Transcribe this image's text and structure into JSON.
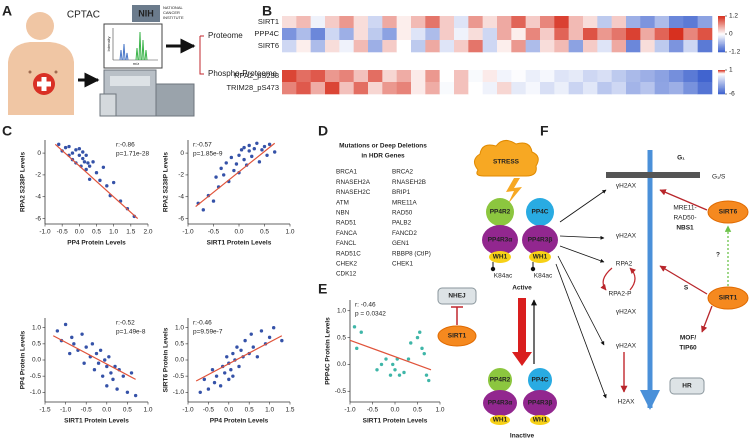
{
  "panel_labels": [
    "A",
    "B",
    "C",
    "D",
    "E",
    "F"
  ],
  "panel_a": {
    "source": "CPTAC",
    "agency": "NIH",
    "agency_full": [
      "NATIONAL",
      "CANCER",
      "INSTITUTE"
    ],
    "y_axis": "Intensity",
    "x_axis": "m/z",
    "outputs": [
      "Proteome",
      "Phospho-Proteome"
    ]
  },
  "chart_data": [
    {
      "type": "heatmap",
      "rows": [
        "SIRT1",
        "PPP4C",
        "SIRT6"
      ],
      "colors": [
        "#3a5fcd",
        "#ffffff",
        "#d7301f"
      ],
      "clim": [
        -1.2,
        1.2
      ],
      "colorbar_ticks": [
        1.2,
        0,
        -1.2
      ],
      "values": [
        [
          0.2,
          0.4,
          -0.1,
          0.3,
          0.6,
          0.2,
          -0.3,
          0.5,
          0.1,
          0.4,
          0.8,
          0.3,
          -0.2,
          0.6,
          0.2,
          0.5,
          0.9,
          0.3,
          0.7,
          1.1,
          0.4,
          0.2,
          -0.4,
          0.3,
          -0.6,
          -0.8,
          -0.5,
          -0.9,
          -1.0,
          -0.7
        ],
        [
          -0.8,
          -0.5,
          -0.9,
          -0.3,
          -0.6,
          0.2,
          -0.4,
          -0.7,
          0.1,
          -0.2,
          -0.5,
          0.3,
          -0.1,
          0.2,
          -0.3,
          0.5,
          0.1,
          0.7,
          0.3,
          0.9,
          0.4,
          1.0,
          0.6,
          0.8,
          1.1,
          0.5,
          0.9,
          1.2,
          0.7,
          1.0
        ],
        [
          -0.3,
          0.1,
          -0.5,
          0.2,
          -0.1,
          0.4,
          -0.6,
          0.3,
          0.0,
          -0.4,
          0.5,
          -0.2,
          0.3,
          0.8,
          -0.3,
          0.1,
          0.6,
          -0.5,
          0.2,
          0.4,
          -0.7,
          0.3,
          -0.2,
          0.5,
          -0.9,
          0.2,
          -0.4,
          -0.8,
          -0.3,
          -1.0
        ]
      ]
    },
    {
      "type": "heatmap",
      "rows": [
        "RPA2_pS238",
        "TRIM28_pS473"
      ],
      "colors": [
        "#3a5fcd",
        "#ffffff",
        "#d7301f"
      ],
      "clim": [
        -6,
        1
      ],
      "colorbar_ticks": [
        1,
        -6
      ],
      "values": [
        [
          0.9,
          0.7,
          0.8,
          0.5,
          0.6,
          0.3,
          0.7,
          0.2,
          0.4,
          0.1,
          0.5,
          0.0,
          0.3,
          -0.2,
          0.1,
          -0.4,
          -0.1,
          -0.6,
          -0.3,
          -1.0,
          -0.8,
          -1.5,
          -1.2,
          -2.0,
          -2.6,
          -3.0,
          -3.5,
          -4.2,
          -5.0,
          -5.8
        ],
        [
          0.6,
          0.8,
          0.4,
          0.9,
          0.3,
          0.7,
          0.2,
          0.5,
          0.6,
          0.1,
          0.4,
          -0.2,
          0.3,
          0.0,
          -0.5,
          0.2,
          -0.8,
          -0.3,
          -1.2,
          -0.6,
          -1.6,
          -0.9,
          -2.1,
          -1.5,
          -2.8,
          -2.2,
          -3.4,
          -3.0,
          -4.1,
          -5.2
        ]
      ]
    },
    {
      "type": "scatter",
      "color": "#3552a8",
      "x_label": "PP4 Protein Levels",
      "y_label": "RPA2 S238P Levels",
      "annotations": [
        "r:-0.86",
        "p=1.71e-28"
      ],
      "xlim": [
        -1,
        2
      ],
      "ylim": [
        -6.5,
        1.2
      ],
      "xticks": [
        {
          "value": -1,
          "label": "-1.0"
        },
        -0.5,
        {
          "value": 0,
          "label": "0.0"
        },
        0.5,
        {
          "value": 1,
          "label": "1.0"
        },
        1.5,
        {
          "value": 2,
          "label": "2.0"
        }
      ],
      "yticks": [
        0,
        -2,
        -4,
        -6
      ],
      "x": [
        -0.6,
        -0.5,
        -0.4,
        -0.3,
        -0.3,
        -0.2,
        -0.2,
        -0.1,
        -0.1,
        0,
        0,
        0.05,
        0.1,
        0.1,
        0.15,
        0.2,
        0.2,
        0.25,
        0.3,
        0.3,
        0.4,
        0.5,
        0.6,
        0.7,
        0.8,
        0.9,
        1.0,
        1.2,
        1.4,
        1.6
      ],
      "y": [
        0.8,
        0.2,
        0.5,
        -0.2,
        0.6,
        0.0,
        -0.6,
        0.3,
        -0.9,
        -0.2,
        0.4,
        -1.2,
        -0.5,
        0.1,
        -0.8,
        -1.5,
        -0.2,
        -0.9,
        -1.2,
        -2.4,
        -0.8,
        -1.8,
        -2.5,
        -1.3,
        -3.0,
        -3.9,
        -2.7,
        -4.4,
        -5.1,
        -5.8
      ],
      "fit": {
        "color": "#e0533a",
        "x": [
          -0.7,
          1.7
        ],
        "y": [
          0.8,
          -6.0
        ]
      }
    },
    {
      "type": "scatter",
      "color": "#3552a8",
      "x_label": "SIRT1 Protein Levels",
      "y_label": "RPA2 S238P Levels",
      "annotations": [
        "r:-0.57",
        "p=1.85e-9"
      ],
      "xlim": [
        -1,
        1
      ],
      "ylim": [
        -6.5,
        1.2
      ],
      "xticks": [
        {
          "value": -1,
          "label": "-1.0"
        },
        -0.5,
        {
          "value": 0,
          "label": "0.0"
        },
        0.5,
        {
          "value": 1,
          "label": "1.0"
        }
      ],
      "yticks": [
        0,
        -2,
        -4,
        -6
      ],
      "x": [
        -0.8,
        -0.7,
        -0.6,
        -0.5,
        -0.45,
        -0.4,
        -0.35,
        -0.3,
        -0.25,
        -0.2,
        -0.15,
        -0.1,
        -0.05,
        0,
        0,
        0.05,
        0.1,
        0.1,
        0.15,
        0.2,
        0.2,
        0.25,
        0.3,
        0.35,
        0.4,
        0.45,
        0.5,
        0.55,
        0.6,
        0.7
      ],
      "y": [
        -4.6,
        -5.2,
        -3.9,
        -4.4,
        -2.2,
        -3.1,
        -1.4,
        -2.0,
        -0.9,
        -2.6,
        -0.4,
        -1.6,
        -1.0,
        -0.2,
        -1.8,
        0.3,
        -0.6,
        0.5,
        -1.1,
        0.2,
        0.7,
        -0.3,
        0.4,
        0.9,
        -0.8,
        0.3,
        0.6,
        -0.2,
        0.8,
        0.1
      ],
      "fit": {
        "color": "#e0533a",
        "x": [
          -0.85,
          0.7
        ],
        "y": [
          -4.9,
          0.9
        ]
      }
    },
    {
      "type": "scatter",
      "color": "#3552a8",
      "x_label": "SIRT1 Protein Levels",
      "y_label": "PP4 Protein Levels",
      "annotations": [
        "r:-0.52",
        "p=1.49e-8"
      ],
      "xlim": [
        -1.5,
        1
      ],
      "ylim": [
        -1.3,
        1.3
      ],
      "xticks": [
        -1.5,
        {
          "value": -1,
          "label": "-1.0"
        },
        -0.5,
        {
          "value": 0,
          "label": "0.0"
        },
        0.5,
        {
          "value": 1,
          "label": "1.0"
        }
      ],
      "yticks": [
        {
          "value": 1,
          "label": "1.0"
        },
        0.5,
        {
          "value": 0,
          "label": "0.0"
        },
        -0.5,
        {
          "value": -1,
          "label": "-1.0"
        }
      ],
      "x": [
        -1.2,
        -1.1,
        -1.0,
        -0.9,
        -0.85,
        -0.8,
        -0.7,
        -0.6,
        -0.55,
        -0.5,
        -0.4,
        -0.35,
        -0.3,
        -0.25,
        -0.2,
        -0.15,
        -0.1,
        -0.05,
        0,
        0,
        0.05,
        0.1,
        0.15,
        0.2,
        0.25,
        0.3,
        0.4,
        0.5,
        0.6,
        0.7
      ],
      "y": [
        0.9,
        0.6,
        1.1,
        0.2,
        0.7,
        0.5,
        0.3,
        0.8,
        -0.1,
        0.4,
        0.1,
        0.5,
        -0.3,
        0.2,
        -0.1,
        0.3,
        -0.5,
        0.0,
        -0.2,
        -0.8,
        0.1,
        -0.4,
        -0.6,
        -0.2,
        -0.9,
        -0.3,
        -0.5,
        -1.0,
        -0.4,
        -1.1
      ],
      "fit": {
        "color": "#e0533a",
        "x": [
          -1.3,
          0.7
        ],
        "y": [
          0.75,
          -0.6
        ]
      }
    },
    {
      "type": "scatter",
      "color": "#3552a8",
      "x_label": "PP4 Protein Levels",
      "y_label": "SIRT6 Protein Levels",
      "annotations": [
        "r:-0.46",
        "p=9.59e-7"
      ],
      "xlim": [
        -1,
        1.5
      ],
      "ylim": [
        -1.3,
        1.3
      ],
      "xticks": [
        {
          "value": -1,
          "label": "-1.0"
        },
        -0.5,
        {
          "value": 0,
          "label": "0.0"
        },
        0.5,
        {
          "value": 1,
          "label": "1.0"
        },
        1.5
      ],
      "yticks": [
        {
          "value": 1,
          "label": "1.0"
        },
        0.5,
        {
          "value": 0,
          "label": "0.0"
        },
        -0.5,
        {
          "value": -1,
          "label": "-1.0"
        }
      ],
      "x": [
        -0.7,
        -0.6,
        -0.5,
        -0.4,
        -0.35,
        -0.3,
        -0.2,
        -0.15,
        -0.1,
        -0.05,
        0,
        0,
        0.05,
        0.1,
        0.1,
        0.15,
        0.2,
        0.25,
        0.3,
        0.35,
        0.4,
        0.5,
        0.55,
        0.6,
        0.7,
        0.8,
        0.9,
        1.0,
        1.1,
        1.3
      ],
      "y": [
        -1.0,
        -0.6,
        -0.9,
        -0.3,
        -0.7,
        -0.5,
        -0.8,
        -0.2,
        -0.4,
        0.1,
        -0.6,
        -0.1,
        -0.3,
        0.2,
        -0.5,
        0.0,
        0.4,
        -0.2,
        0.3,
        0.1,
        0.6,
        0.2,
        0.8,
        0.4,
        0.1,
        0.9,
        0.5,
        0.7,
        1.0,
        0.6
      ],
      "fit": {
        "color": "#e0533a",
        "x": [
          -0.8,
          1.3
        ],
        "y": [
          -0.65,
          0.75
        ]
      }
    },
    {
      "type": "scatter",
      "color": "#3fb6a8",
      "x_label": "SIRT1 Protein Levels",
      "y_label": "PPP4C Protein Levels",
      "annotations": [
        "r: -0.46",
        "p = 0.0342"
      ],
      "xlim": [
        -1,
        1
      ],
      "ylim": [
        -0.7,
        1.2
      ],
      "xticks": [
        {
          "value": -1,
          "label": "-1.0"
        },
        -0.5,
        {
          "value": 0,
          "label": "0.0"
        },
        0.5,
        {
          "value": 1,
          "label": "1.0"
        }
      ],
      "yticks": [
        {
          "value": 1,
          "label": "1.0"
        },
        0.5,
        {
          "value": 0,
          "label": "0.0"
        },
        -0.5
      ],
      "x": [
        -0.9,
        -0.85,
        -0.75,
        -0.4,
        -0.3,
        -0.2,
        -0.1,
        -0.05,
        0,
        0.05,
        0.1,
        0.2,
        0.3,
        0.35,
        0.5,
        0.55,
        0.6,
        0.65,
        0.7,
        0.75
      ],
      "y": [
        0.7,
        0.3,
        0.6,
        -0.1,
        0.0,
        0.1,
        -0.2,
        0.0,
        -0.1,
        0.1,
        -0.2,
        -0.15,
        0.1,
        0.4,
        0.5,
        0.6,
        0.3,
        0.2,
        -0.2,
        -0.3
      ],
      "fit": {
        "color": "#e0533a",
        "x": [
          -1,
          0.8
        ],
        "y": [
          0.45,
          -0.1
        ]
      }
    }
  ],
  "panel_d": {
    "title": [
      "Mutations or Deep Deletions",
      "in HDR Genes"
    ],
    "genes": [
      [
        "BRCA1",
        "RNASEH2A",
        "RNASEH2C",
        "ATM",
        "NBN",
        "RAD51",
        "FANCA",
        "FANCL",
        "RAD51C",
        "CHEK2",
        "CDK12"
      ],
      [
        "BRCA2",
        "RNASEH2B",
        "BRIP1",
        "MRE11A",
        "RAD50",
        "PALB2",
        "FANCD2",
        "GEN1",
        "RBBP8 (CtIP)",
        "CHEK1"
      ]
    ]
  },
  "panel_f": {
    "stress": "STRESS",
    "active_complex": [
      "PP4R2",
      "PP4C",
      "PP4R3α",
      "PP4R3β",
      "WH1",
      "WH1",
      "K84ac",
      "K84ac"
    ],
    "active": "Active",
    "nhej": "NHEJ",
    "sirt1_left": "SIRT1",
    "inactive_complex": [
      "PP4R2",
      "PP4C",
      "PP4R3α",
      "PP4R3β",
      "WH1",
      "WH1"
    ],
    "inactive": "Inactive",
    "g1": "G₁",
    "g1s": "G₁/S",
    "mrn": [
      "MRE11-",
      "RAD50-",
      "NBS1"
    ],
    "gh2ax": [
      "γH2AX",
      "γH2AX",
      "γH2AX",
      "γH2AX"
    ],
    "rpa2": "RPA2",
    "rpa2p": "RPA2-P",
    "s_phase": "S",
    "mof": [
      "MOF/",
      "TIP60"
    ],
    "hr": "HR",
    "h2ax": "H2AX",
    "sirt6": "SIRT6",
    "unknown": "?",
    "sirt1_right": "SIRT1"
  }
}
